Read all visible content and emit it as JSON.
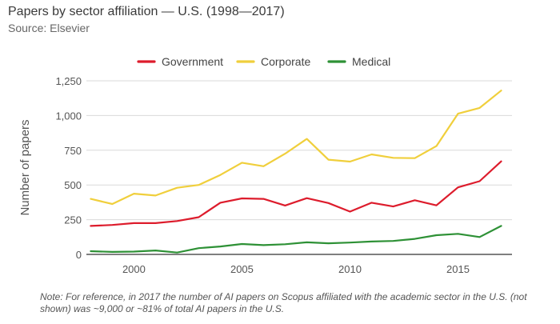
{
  "header": {
    "title": "Papers by sector affiliation — U.S. (1998—2017)",
    "subtitle": "Source: Elsevier"
  },
  "note": "Note: For reference, in 2017 the number of AI papers on Scopus affiliated with the academic sector in the U.S. (not shown) was ~9,000 or ~81% of total AI papers in the U.S.",
  "chart_data": {
    "type": "line",
    "title": "Papers by sector affiliation — U.S. (1998—2017)",
    "subtitle": "Source: Elsevier",
    "xlabel": "",
    "ylabel": "Number of papers",
    "x": [
      1998,
      1999,
      2000,
      2001,
      2002,
      2003,
      2004,
      2005,
      2006,
      2007,
      2008,
      2009,
      2010,
      2011,
      2012,
      2013,
      2014,
      2015,
      2016,
      2017
    ],
    "x_ticks": [
      2000,
      2005,
      2010,
      2015
    ],
    "x_tick_labels": [
      "2000",
      "2005",
      "2010",
      "2015"
    ],
    "xlim": [
      1997.8,
      2017.5
    ],
    "y_ticks": [
      0,
      250,
      500,
      750,
      1000,
      1250
    ],
    "y_tick_labels": [
      "0",
      "250",
      "500",
      "750",
      "1,000",
      "1,250"
    ],
    "ylim": [
      0,
      1250
    ],
    "grid": true,
    "legend_position": "top",
    "series": [
      {
        "name": "Government",
        "color": "#dd1c2c",
        "values": [
          205,
          212,
          225,
          225,
          240,
          268,
          372,
          403,
          400,
          352,
          405,
          370,
          308,
          372,
          345,
          390,
          353,
          483,
          527,
          670
        ]
      },
      {
        "name": "Corporate",
        "color": "#f0cf3c",
        "values": [
          400,
          363,
          437,
          424,
          480,
          500,
          572,
          660,
          635,
          725,
          832,
          682,
          668,
          720,
          695,
          693,
          780,
          1013,
          1055,
          1180
        ]
      },
      {
        "name": "Medical",
        "color": "#2e9136",
        "values": [
          23,
          18,
          20,
          28,
          13,
          45,
          57,
          75,
          67,
          73,
          87,
          80,
          85,
          93,
          97,
          112,
          138,
          148,
          125,
          205
        ]
      }
    ]
  }
}
